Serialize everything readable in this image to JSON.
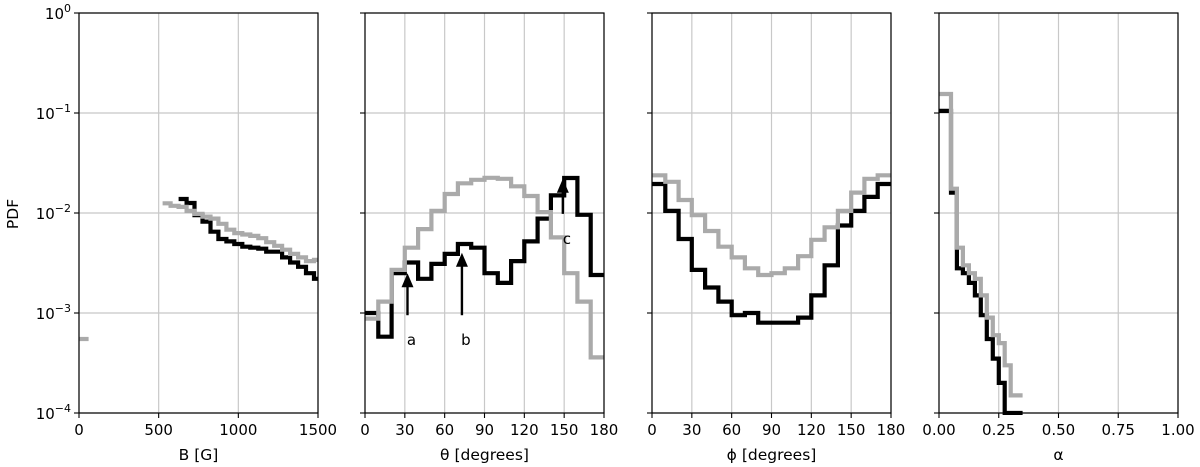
{
  "figure": {
    "ylabel": "PDF",
    "yscale": "log",
    "ylim": [
      0.0001,
      1
    ],
    "ytick_labels": [
      {
        "base": "10",
        "exp": "0",
        "value": 1
      },
      {
        "base": "10",
        "exp": "−1",
        "value": 0.1
      },
      {
        "base": "10",
        "exp": "−2",
        "value": 0.01
      },
      {
        "base": "10",
        "exp": "−3",
        "value": 0.001
      },
      {
        "base": "10",
        "exp": "−4",
        "value": 0.0001
      }
    ],
    "colors": {
      "black": "#000000",
      "gray": "#aaaaaa",
      "grid": "#c8c8c8"
    }
  },
  "chart_data": [
    {
      "type": "line",
      "drawstyle": "steps",
      "xlabel": "B [G]",
      "xlim": [
        0,
        1500
      ],
      "xticks": [
        0,
        500,
        1000,
        1500
      ],
      "xtick_labels": [
        "0",
        "500",
        "1000",
        "1500"
      ],
      "grid": true,
      "series": [
        {
          "color": "black",
          "edges": [
            625,
            675,
            725,
            775,
            825,
            875,
            925,
            975,
            1025,
            1075,
            1125,
            1175,
            1225,
            1275,
            1325,
            1375,
            1425,
            1475,
            1500
          ],
          "values": [
            0.0138,
            0.0126,
            0.0095,
            0.0082,
            0.0065,
            0.0055,
            0.0052,
            0.0049,
            0.0046,
            0.0045,
            0.0044,
            0.0041,
            0.0041,
            0.0036,
            0.0032,
            0.0029,
            0.0025,
            0.0022
          ]
        },
        {
          "color": "gray",
          "edges": [
            525,
            575,
            625,
            675,
            725,
            775,
            825,
            875,
            925,
            975,
            1025,
            1075,
            1125,
            1175,
            1225,
            1275,
            1325,
            1375,
            1425,
            1475,
            1500
          ],
          "values": [
            0.0125,
            0.0118,
            0.0115,
            0.0105,
            0.0098,
            0.0092,
            0.0088,
            0.0078,
            0.0068,
            0.0063,
            0.0061,
            0.0059,
            0.0056,
            0.0051,
            0.0047,
            0.0043,
            0.0039,
            0.0036,
            0.0033,
            0.0034
          ]
        },
        {
          "color": "gray",
          "edges": [
            0,
            60
          ],
          "values": [
            0.00055
          ]
        }
      ]
    },
    {
      "type": "line",
      "drawstyle": "steps",
      "xlabel": "θ [degrees]",
      "xlim": [
        0,
        180
      ],
      "xticks": [
        0,
        30,
        60,
        90,
        120,
        150,
        180
      ],
      "xtick_labels": [
        "0",
        "30",
        "60",
        "90",
        "120",
        "150",
        "180"
      ],
      "grid": true,
      "series": [
        {
          "color": "black",
          "edges": [
            0,
            10,
            20,
            30,
            40,
            50,
            60,
            70,
            80,
            90,
            100,
            110,
            120,
            130,
            140,
            150,
            160,
            170,
            180
          ],
          "values": [
            0.001,
            0.00058,
            0.0025,
            0.0032,
            0.0022,
            0.0031,
            0.0039,
            0.0049,
            0.0045,
            0.0025,
            0.002,
            0.0033,
            0.0052,
            0.0088,
            0.015,
            0.0224,
            0.0096,
            0.0024
          ]
        },
        {
          "color": "gray",
          "edges": [
            0,
            10,
            20,
            30,
            40,
            50,
            60,
            70,
            80,
            90,
            100,
            110,
            120,
            130,
            140,
            150,
            160,
            170,
            180
          ],
          "values": [
            0.00088,
            0.0013,
            0.0027,
            0.0045,
            0.0069,
            0.0105,
            0.0155,
            0.0198,
            0.0215,
            0.0225,
            0.022,
            0.0185,
            0.0148,
            0.0102,
            0.0057,
            0.0025,
            0.0013,
            0.00036
          ]
        }
      ],
      "annotations": [
        {
          "label": "a",
          "x": 32,
          "y_tail": 0.00095,
          "y_head": 0.0025
        },
        {
          "label": "b",
          "x": 73,
          "y_tail": 0.00095,
          "y_head": 0.004
        },
        {
          "label": "c",
          "x": 149,
          "y_tail": 0.0098,
          "y_head": 0.022
        }
      ]
    },
    {
      "type": "line",
      "drawstyle": "steps",
      "xlabel": "ϕ [degrees]",
      "xlim": [
        0,
        180
      ],
      "xticks": [
        0,
        30,
        60,
        90,
        120,
        150,
        180
      ],
      "xtick_labels": [
        "0",
        "30",
        "60",
        "90",
        "120",
        "150",
        "180"
      ],
      "grid": true,
      "series": [
        {
          "color": "black",
          "edges": [
            0,
            10,
            20,
            30,
            40,
            50,
            60,
            70,
            80,
            90,
            100,
            110,
            120,
            130,
            140,
            150,
            160,
            170,
            180
          ],
          "values": [
            0.0195,
            0.0105,
            0.0055,
            0.0027,
            0.0018,
            0.0013,
            0.00095,
            0.001,
            0.0008,
            0.0008,
            0.0008,
            0.0009,
            0.0015,
            0.003,
            0.0075,
            0.0105,
            0.0145,
            0.0195
          ]
        },
        {
          "color": "gray",
          "edges": [
            0,
            10,
            20,
            30,
            40,
            50,
            60,
            70,
            80,
            90,
            100,
            110,
            120,
            130,
            140,
            150,
            160,
            170,
            180
          ],
          "values": [
            0.0238,
            0.0205,
            0.0135,
            0.0095,
            0.0066,
            0.0046,
            0.0036,
            0.0028,
            0.0024,
            0.0025,
            0.0028,
            0.0037,
            0.0054,
            0.0072,
            0.0105,
            0.016,
            0.022,
            0.0238
          ]
        }
      ]
    },
    {
      "type": "line",
      "drawstyle": "steps",
      "xlabel": "α",
      "xlim": [
        0,
        1
      ],
      "xticks": [
        0,
        0.25,
        0.5,
        0.75,
        1
      ],
      "xtick_labels": [
        "0.00",
        "0.25",
        "0.50",
        "0.75",
        "1.00"
      ],
      "grid": true,
      "series": [
        {
          "color": "black",
          "edges": [
            0,
            0.025,
            0.05,
            0.075,
            0.1,
            0.125,
            0.15,
            0.175,
            0.2,
            0.225,
            0.25,
            0.275,
            0.3,
            0.325,
            0.35
          ],
          "values": [
            0.105,
            0.105,
            0.016,
            0.0028,
            0.0025,
            0.002,
            0.0015,
            0.00095,
            0.00055,
            0.00035,
            0.0002,
            0.0001,
            0.0001,
            0.0001
          ]
        },
        {
          "color": "gray",
          "edges": [
            0,
            0.025,
            0.05,
            0.075,
            0.1,
            0.125,
            0.15,
            0.175,
            0.2,
            0.225,
            0.25,
            0.275,
            0.3,
            0.325,
            0.35
          ],
          "values": [
            0.155,
            0.155,
            0.0175,
            0.0045,
            0.003,
            0.0025,
            0.0022,
            0.0015,
            0.0009,
            0.0006,
            0.0005,
            0.0003,
            0.00015,
            0.00015
          ]
        }
      ]
    }
  ]
}
